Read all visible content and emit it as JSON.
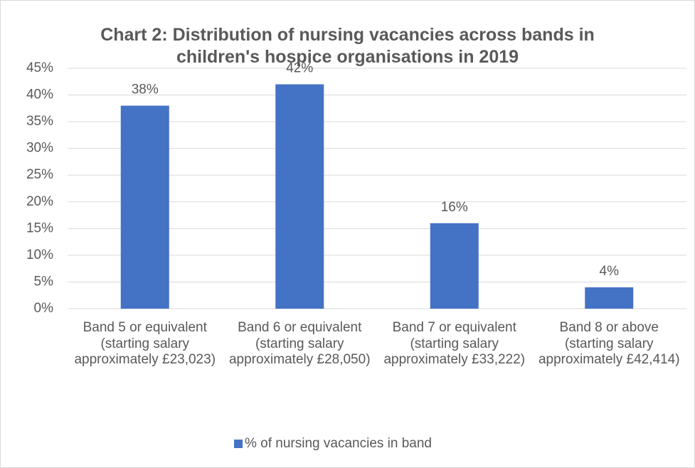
{
  "chart_data": {
    "type": "bar",
    "title": "Chart 2: Distribution of nursing vacancies across bands in children's hospice organisations in 2019",
    "categories": [
      "Band 5 or equivalent (starting salary approximately £23,023)",
      "Band 6 or equivalent (starting salary approximately £28,050)",
      "Band 7 or equivalent (starting salary approximately £33,222)",
      "Band 8 or above (starting salary approximately £42,414)"
    ],
    "series": [
      {
        "name": "% of nursing vacancies in band",
        "color": "#4472c4",
        "values": [
          38,
          42,
          16,
          4
        ],
        "value_labels": [
          "38%",
          "42%",
          "16%",
          "4%"
        ]
      }
    ],
    "ylim": [
      0,
      45
    ],
    "yticks": [
      {
        "value": 0,
        "label": "0%"
      },
      {
        "value": 5,
        "label": "5%"
      },
      {
        "value": 10,
        "label": "10%"
      },
      {
        "value": 15,
        "label": "15%"
      },
      {
        "value": 20,
        "label": "20%"
      },
      {
        "value": 25,
        "label": "25%"
      },
      {
        "value": 30,
        "label": "30%"
      },
      {
        "value": 35,
        "label": "35%"
      },
      {
        "value": 40,
        "label": "40%"
      },
      {
        "value": 45,
        "label": "45%"
      }
    ],
    "grid": true,
    "legend": "bottom"
  }
}
